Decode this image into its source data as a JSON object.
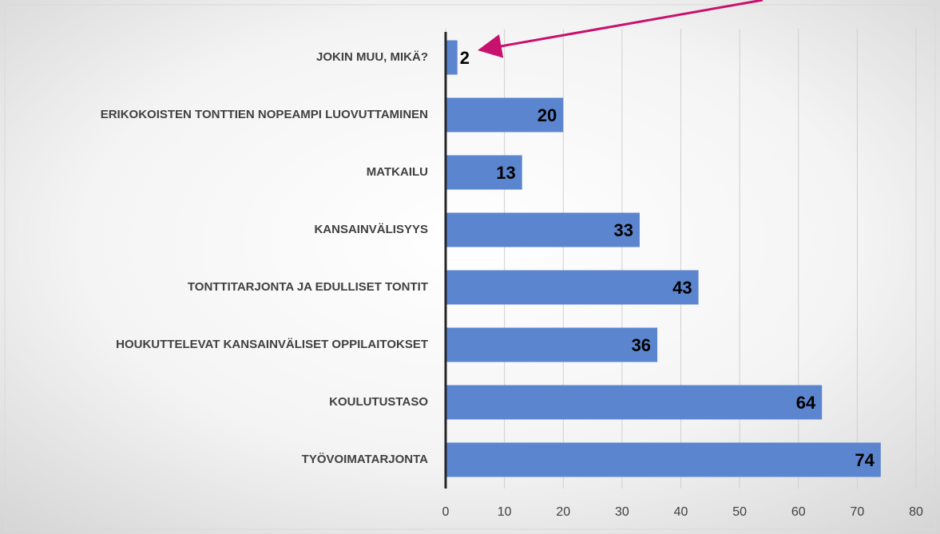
{
  "chart_data": {
    "type": "barh",
    "categories": [
      "JOKIN MUU, MIKÄ?",
      "ERIKOKOISTEN TONTTIEN NOPEAMPI LUOVUTTAMINEN",
      "MATKAILU",
      "KANSAINVÄLISYYS",
      "TONTTITARJONTA JA EDULLISET TONTIT",
      "HOUKUTTELEVAT KANSAINVÄLISET OPPILAITOKSET",
      "KOULUTUSTASO",
      "TYÖVOIMATARJONTA"
    ],
    "values": [
      2,
      20,
      13,
      33,
      43,
      36,
      64,
      74
    ],
    "color": "#5b86cf",
    "xlim": [
      0,
      80
    ],
    "xticks": [
      0,
      10,
      20,
      30,
      40,
      50,
      60,
      70,
      80
    ],
    "grid": true
  }
}
